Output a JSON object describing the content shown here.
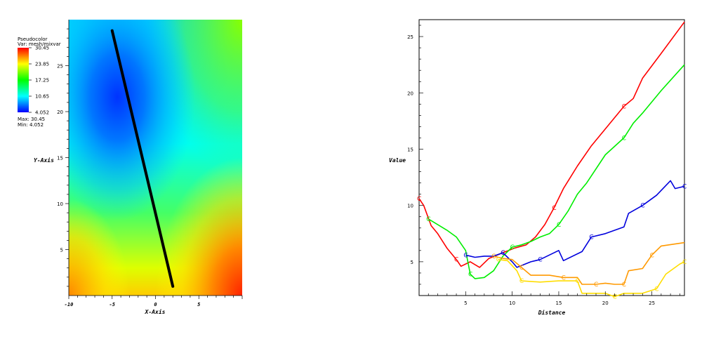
{
  "colors": {
    "pseudocolor_scale": [
      "#0000ff",
      "#00ffff",
      "#00ff00",
      "#ffff00",
      "#ff0000"
    ],
    "series": [
      "#ff0000",
      "#00ee00",
      "#0000dd",
      "#ff9900",
      "#ffdd00"
    ]
  },
  "legend": {
    "title": "Pseudocolor",
    "var": "Var: mesh/mixvar",
    "ticks": [
      "30.45",
      "23.85",
      "17.25",
      "10.65",
      "4.052"
    ],
    "max": "Max: 30.45",
    "min": "Min: 4.052"
  },
  "chart_data": [
    {
      "type": "heatmap",
      "xlabel": "X-Axis",
      "ylabel": "Y-Axis",
      "xlim": [
        -10,
        10
      ],
      "ylim": [
        0,
        30
      ],
      "x_ticks": [
        "-10",
        "-5",
        "0",
        "5"
      ],
      "y_ticks": [
        "5",
        "10",
        "15",
        "20",
        "25"
      ],
      "color_range": [
        4.052,
        30.45
      ],
      "lineout": {
        "from": [
          -5,
          28.8
        ],
        "to": [
          2,
          1
        ]
      }
    },
    {
      "type": "line",
      "xlabel": "Distance",
      "ylabel": "Value",
      "xlim": [
        0,
        28.5
      ],
      "ylim": [
        2,
        26.5
      ],
      "x_ticks": [
        "5",
        "10",
        "15",
        "20",
        "25"
      ],
      "y_ticks": [
        "5",
        "10",
        "15",
        "20",
        "25"
      ],
      "marker": "C",
      "series": [
        {
          "x": [
            0,
            0.5,
            1.3,
            2,
            3,
            4,
            4.5,
            5.5,
            6.5,
            7.5,
            9,
            10.2,
            11.5,
            12.5,
            13.5,
            14.5,
            15.5,
            17,
            18.5,
            20.5,
            22,
            23,
            24,
            26,
            28.5
          ],
          "y": [
            10.6,
            10,
            8.2,
            7.5,
            6.2,
            5.2,
            4.6,
            5,
            4.5,
            5.3,
            5.8,
            6.2,
            6.5,
            7.2,
            8.3,
            9.8,
            11.5,
            13.5,
            15.3,
            17.3,
            18.8,
            19.5,
            21.3,
            23.5,
            26.3
          ]
        },
        {
          "x": [
            1,
            2,
            3,
            4,
            5,
            5.5,
            6,
            7,
            8,
            9,
            10,
            11,
            12,
            13,
            14,
            15,
            16,
            17,
            18,
            20,
            22,
            23,
            24,
            26,
            28.5
          ],
          "y": [
            8.8,
            8.3,
            7.8,
            7.2,
            6,
            3.9,
            3.5,
            3.6,
            4.2,
            5.5,
            6.3,
            6.5,
            6.8,
            7.2,
            7.5,
            8.3,
            9.5,
            11,
            12,
            14.5,
            16,
            17.3,
            18.2,
            20.2,
            22.5
          ]
        },
        {
          "x": [
            5,
            6,
            7,
            8,
            9,
            10,
            10.5,
            12,
            13,
            15,
            15.5,
            17.5,
            18.5,
            20,
            22,
            22.5,
            24,
            25.5,
            27,
            27.5,
            28.5
          ],
          "y": [
            5.6,
            5.4,
            5.5,
            5.5,
            5.8,
            5,
            4.5,
            5,
            5.2,
            6,
            5.1,
            5.9,
            7.2,
            7.5,
            8.1,
            9.3,
            10,
            10.9,
            12.2,
            11.5,
            11.7
          ]
        },
        {
          "x": [
            8,
            9,
            10,
            11,
            12,
            14,
            15.5,
            17,
            17.5,
            19,
            20,
            21,
            22,
            22.5,
            24,
            25,
            26,
            28.5
          ],
          "y": [
            5.5,
            5.3,
            5.2,
            4.5,
            3.8,
            3.8,
            3.6,
            3.6,
            3,
            3,
            3.1,
            3,
            3,
            4.2,
            4.4,
            5.6,
            6.4,
            6.7
          ]
        },
        {
          "x": [
            8.5,
            9.5,
            10.5,
            11,
            13,
            15,
            17,
            17.5,
            20,
            21,
            22,
            24,
            25.5,
            26.5,
            28,
            28.5
          ],
          "y": [
            5.2,
            5.1,
            4.2,
            3.3,
            3.2,
            3.3,
            3.3,
            2.2,
            2.2,
            1.9,
            2.2,
            2.2,
            2.6,
            3.9,
            4.8,
            5
          ]
        }
      ]
    }
  ]
}
